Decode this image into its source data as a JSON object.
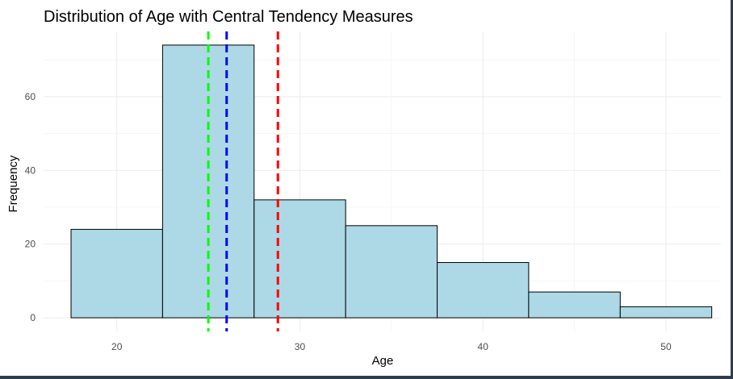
{
  "chart_data": {
    "type": "bar",
    "title": "Distribution of Age with Central Tendency Measures",
    "xlabel": "Age",
    "ylabel": "Frequency",
    "bins": [
      {
        "start": 17.5,
        "end": 22.5,
        "count": 24
      },
      {
        "start": 22.5,
        "end": 27.5,
        "count": 74
      },
      {
        "start": 27.5,
        "end": 32.5,
        "count": 32
      },
      {
        "start": 32.5,
        "end": 37.5,
        "count": 25
      },
      {
        "start": 37.5,
        "end": 42.5,
        "count": 15
      },
      {
        "start": 42.5,
        "end": 47.5,
        "count": 7
      },
      {
        "start": 47.5,
        "end": 52.5,
        "count": 3
      }
    ],
    "xlim": [
      16,
      53
    ],
    "ylim": [
      -3.7,
      77.7
    ],
    "x_ticks": [
      20,
      30,
      40,
      50
    ],
    "y_ticks": [
      0,
      20,
      40,
      60
    ],
    "vlines": [
      {
        "x": 25,
        "color": "#00ff00",
        "style": "dashed"
      },
      {
        "x": 26,
        "color": "#0000ff",
        "style": "dashed"
      },
      {
        "x": 28.8,
        "color": "#ff0000",
        "style": "dashed"
      }
    ],
    "bar_fill": "#add8e6",
    "bar_edge": "#000000",
    "grid": true,
    "legend": "none"
  }
}
